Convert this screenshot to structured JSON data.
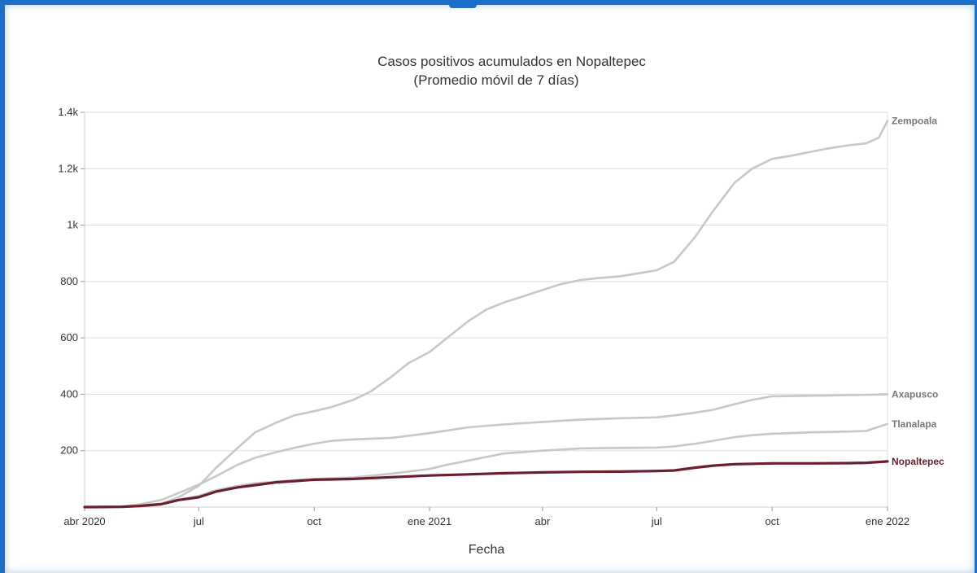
{
  "chart_data": {
    "type": "line",
    "title": "Casos positivos acumulados en Nopaltepec",
    "subtitle": "(Promedio móvil de 7 días)",
    "xlabel": "Fecha",
    "ylabel": "",
    "xlim": [
      "2020-04-01",
      "2022-01-01"
    ],
    "ylim": [
      0,
      1400
    ],
    "x_ticks": [
      {
        "date": "2020-04-01",
        "label": "abr 2020"
      },
      {
        "date": "2020-07-01",
        "label": "jul"
      },
      {
        "date": "2020-10-01",
        "label": "oct"
      },
      {
        "date": "2021-01-01",
        "label": "ene 2021"
      },
      {
        "date": "2021-04-01",
        "label": "abr"
      },
      {
        "date": "2021-07-01",
        "label": "jul"
      },
      {
        "date": "2021-10-01",
        "label": "oct"
      },
      {
        "date": "2022-01-01",
        "label": "ene 2022"
      }
    ],
    "y_ticks": [
      {
        "value": 200,
        "label": "200"
      },
      {
        "value": 400,
        "label": "400"
      },
      {
        "value": 600,
        "label": "600"
      },
      {
        "value": 800,
        "label": "800"
      },
      {
        "value": 1000,
        "label": "1k"
      },
      {
        "value": 1200,
        "label": "1.2k"
      },
      {
        "value": 1400,
        "label": "1.4k"
      }
    ],
    "grid": {
      "horizontal": true,
      "vertical": false
    },
    "legend": "none",
    "series": [
      {
        "name": "Zempoala",
        "color": "#c8c8c8",
        "points": [
          [
            "2020-04-01",
            0
          ],
          [
            "2020-05-01",
            3
          ],
          [
            "2020-06-01",
            12
          ],
          [
            "2020-06-15",
            35
          ],
          [
            "2020-07-01",
            75
          ],
          [
            "2020-07-15",
            140
          ],
          [
            "2020-08-01",
            210
          ],
          [
            "2020-08-15",
            265
          ],
          [
            "2020-09-01",
            300
          ],
          [
            "2020-09-15",
            325
          ],
          [
            "2020-10-01",
            340
          ],
          [
            "2020-10-15",
            355
          ],
          [
            "2020-11-01",
            380
          ],
          [
            "2020-11-15",
            410
          ],
          [
            "2020-12-01",
            460
          ],
          [
            "2020-12-15",
            510
          ],
          [
            "2021-01-01",
            550
          ],
          [
            "2021-01-15",
            600
          ],
          [
            "2021-02-01",
            660
          ],
          [
            "2021-02-15",
            700
          ],
          [
            "2021-03-01",
            725
          ],
          [
            "2021-03-15",
            745
          ],
          [
            "2021-04-01",
            770
          ],
          [
            "2021-04-15",
            790
          ],
          [
            "2021-05-01",
            805
          ],
          [
            "2021-05-15",
            812
          ],
          [
            "2021-06-01",
            818
          ],
          [
            "2021-06-15",
            828
          ],
          [
            "2021-07-01",
            840
          ],
          [
            "2021-07-15",
            870
          ],
          [
            "2021-08-01",
            960
          ],
          [
            "2021-08-15",
            1050
          ],
          [
            "2021-09-01",
            1150
          ],
          [
            "2021-09-15",
            1200
          ],
          [
            "2021-10-01",
            1235
          ],
          [
            "2021-10-15",
            1245
          ],
          [
            "2021-11-01",
            1260
          ],
          [
            "2021-11-15",
            1272
          ],
          [
            "2021-12-01",
            1283
          ],
          [
            "2021-12-15",
            1290
          ],
          [
            "2021-12-25",
            1310
          ],
          [
            "2022-01-01",
            1370
          ]
        ]
      },
      {
        "name": "Axapusco",
        "color": "#c8c8c8",
        "points": [
          [
            "2020-04-01",
            0
          ],
          [
            "2020-05-01",
            2
          ],
          [
            "2020-05-15",
            10
          ],
          [
            "2020-06-01",
            25
          ],
          [
            "2020-06-15",
            50
          ],
          [
            "2020-07-01",
            80
          ],
          [
            "2020-07-15",
            110
          ],
          [
            "2020-08-01",
            150
          ],
          [
            "2020-08-15",
            175
          ],
          [
            "2020-09-01",
            195
          ],
          [
            "2020-09-15",
            210
          ],
          [
            "2020-10-01",
            225
          ],
          [
            "2020-10-15",
            235
          ],
          [
            "2020-11-01",
            240
          ],
          [
            "2020-12-01",
            245
          ],
          [
            "2021-01-01",
            262
          ],
          [
            "2021-02-01",
            283
          ],
          [
            "2021-03-01",
            293
          ],
          [
            "2021-04-01",
            302
          ],
          [
            "2021-05-01",
            310
          ],
          [
            "2021-06-01",
            315
          ],
          [
            "2021-07-01",
            318
          ],
          [
            "2021-07-15",
            325
          ],
          [
            "2021-08-01",
            335
          ],
          [
            "2021-08-15",
            345
          ],
          [
            "2021-09-01",
            365
          ],
          [
            "2021-09-15",
            380
          ],
          [
            "2021-10-01",
            393
          ],
          [
            "2021-11-01",
            395
          ],
          [
            "2021-12-01",
            397
          ],
          [
            "2022-01-01",
            400
          ]
        ]
      },
      {
        "name": "Tlanalapa",
        "color": "#c8c8c8",
        "points": [
          [
            "2020-04-01",
            0
          ],
          [
            "2020-05-01",
            2
          ],
          [
            "2020-06-01",
            10
          ],
          [
            "2020-06-15",
            25
          ],
          [
            "2020-07-01",
            40
          ],
          [
            "2020-07-15",
            60
          ],
          [
            "2020-08-01",
            75
          ],
          [
            "2020-08-15",
            85
          ],
          [
            "2020-09-01",
            90
          ],
          [
            "2020-09-15",
            95
          ],
          [
            "2020-10-01",
            100
          ],
          [
            "2020-11-01",
            105
          ],
          [
            "2020-12-01",
            118
          ],
          [
            "2021-01-01",
            135
          ],
          [
            "2021-01-15",
            150
          ],
          [
            "2021-02-01",
            165
          ],
          [
            "2021-03-01",
            190
          ],
          [
            "2021-04-01",
            200
          ],
          [
            "2021-05-01",
            208
          ],
          [
            "2021-06-01",
            210
          ],
          [
            "2021-07-01",
            211
          ],
          [
            "2021-07-15",
            215
          ],
          [
            "2021-08-01",
            225
          ],
          [
            "2021-08-15",
            235
          ],
          [
            "2021-09-01",
            248
          ],
          [
            "2021-09-15",
            255
          ],
          [
            "2021-10-01",
            260
          ],
          [
            "2021-11-01",
            265
          ],
          [
            "2021-12-01",
            268
          ],
          [
            "2021-12-15",
            270
          ],
          [
            "2022-01-01",
            295
          ]
        ]
      },
      {
        "name": "Nopaltepec",
        "color": "#6b1e2e",
        "points": [
          [
            "2020-04-01",
            0
          ],
          [
            "2020-05-01",
            1
          ],
          [
            "2020-05-15",
            4
          ],
          [
            "2020-06-01",
            10
          ],
          [
            "2020-06-15",
            25
          ],
          [
            "2020-07-01",
            35
          ],
          [
            "2020-07-15",
            55
          ],
          [
            "2020-08-01",
            70
          ],
          [
            "2020-08-15",
            78
          ],
          [
            "2020-09-01",
            88
          ],
          [
            "2020-09-15",
            92
          ],
          [
            "2020-10-01",
            97
          ],
          [
            "2020-10-15",
            98
          ],
          [
            "2020-11-01",
            100
          ],
          [
            "2020-12-01",
            106
          ],
          [
            "2021-01-01",
            112
          ],
          [
            "2021-02-01",
            116
          ],
          [
            "2021-03-01",
            120
          ],
          [
            "2021-04-01",
            123
          ],
          [
            "2021-05-01",
            125
          ],
          [
            "2021-06-01",
            126
          ],
          [
            "2021-07-01",
            128
          ],
          [
            "2021-07-15",
            130
          ],
          [
            "2021-08-01",
            140
          ],
          [
            "2021-08-15",
            147
          ],
          [
            "2021-09-01",
            152
          ],
          [
            "2021-10-01",
            155
          ],
          [
            "2021-11-01",
            155
          ],
          [
            "2021-12-01",
            156
          ],
          [
            "2021-12-15",
            157
          ],
          [
            "2022-01-01",
            162
          ]
        ]
      }
    ]
  }
}
